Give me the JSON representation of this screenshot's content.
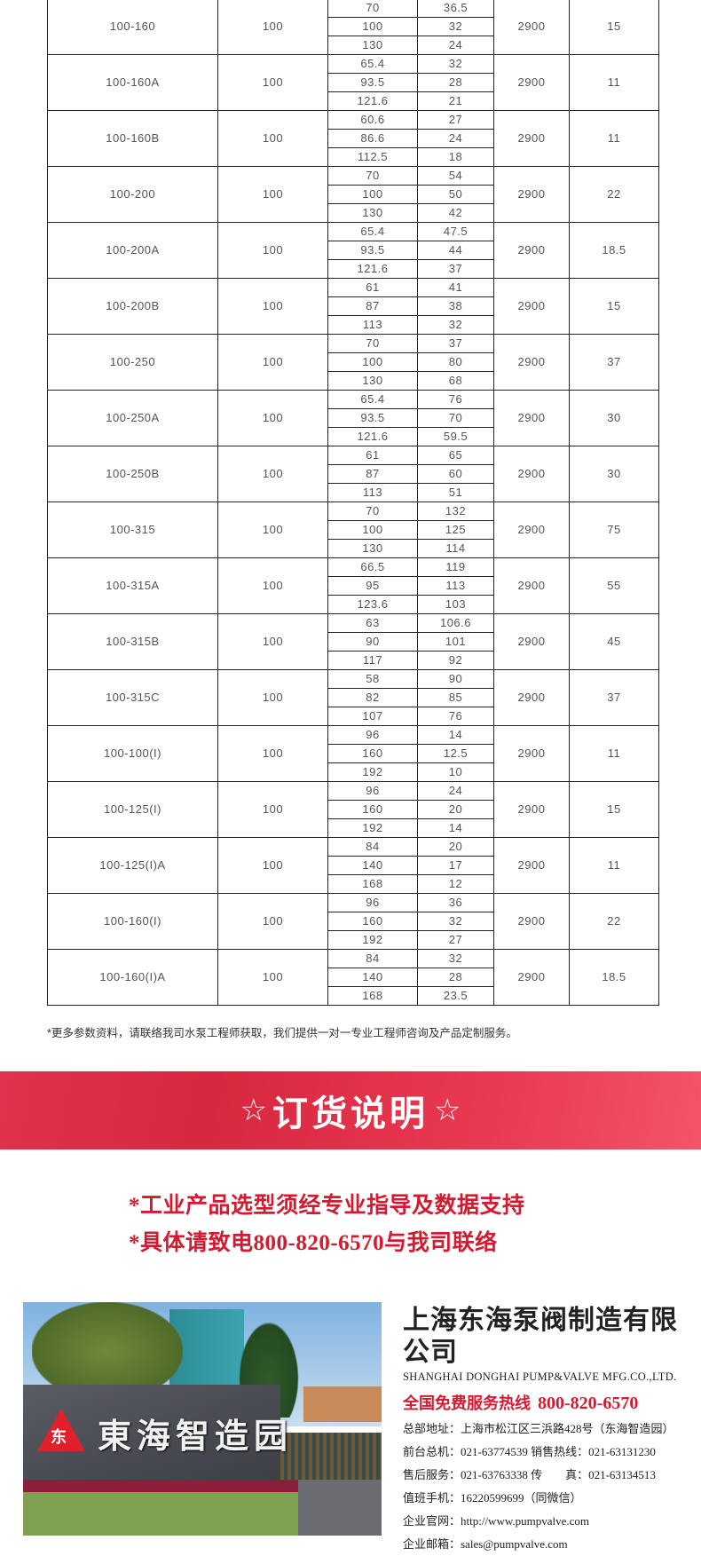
{
  "table": {
    "groups": [
      {
        "model": "100-160",
        "inlet": "100",
        "flow": [
          "70",
          "100",
          "130"
        ],
        "head": [
          "36.5",
          "32",
          "24"
        ],
        "speed": "2900",
        "power": "15"
      },
      {
        "model": "100-160A",
        "inlet": "100",
        "flow": [
          "65.4",
          "93.5",
          "121.6"
        ],
        "head": [
          "32",
          "28",
          "21"
        ],
        "speed": "2900",
        "power": "11"
      },
      {
        "model": "100-160B",
        "inlet": "100",
        "flow": [
          "60.6",
          "86.6",
          "112.5"
        ],
        "head": [
          "27",
          "24",
          "18"
        ],
        "speed": "2900",
        "power": "11"
      },
      {
        "model": "100-200",
        "inlet": "100",
        "flow": [
          "70",
          "100",
          "130"
        ],
        "head": [
          "54",
          "50",
          "42"
        ],
        "speed": "2900",
        "power": "22"
      },
      {
        "model": "100-200A",
        "inlet": "100",
        "flow": [
          "65.4",
          "93.5",
          "121.6"
        ],
        "head": [
          "47.5",
          "44",
          "37"
        ],
        "speed": "2900",
        "power": "18.5"
      },
      {
        "model": "100-200B",
        "inlet": "100",
        "flow": [
          "61",
          "87",
          "113"
        ],
        "head": [
          "41",
          "38",
          "32"
        ],
        "speed": "2900",
        "power": "15"
      },
      {
        "model": "100-250",
        "inlet": "100",
        "flow": [
          "70",
          "100",
          "130"
        ],
        "head": [
          "37",
          "80",
          "68"
        ],
        "speed": "2900",
        "power": "37"
      },
      {
        "model": "100-250A",
        "inlet": "100",
        "flow": [
          "65.4",
          "93.5",
          "121.6"
        ],
        "head": [
          "76",
          "70",
          "59.5"
        ],
        "speed": "2900",
        "power": "30"
      },
      {
        "model": "100-250B",
        "inlet": "100",
        "flow": [
          "61",
          "87",
          "113"
        ],
        "head": [
          "65",
          "60",
          "51"
        ],
        "speed": "2900",
        "power": "30"
      },
      {
        "model": "100-315",
        "inlet": "100",
        "flow": [
          "70",
          "100",
          "130"
        ],
        "head": [
          "132",
          "125",
          "114"
        ],
        "speed": "2900",
        "power": "75"
      },
      {
        "model": "100-315A",
        "inlet": "100",
        "flow": [
          "66.5",
          "95",
          "123.6"
        ],
        "head": [
          "119",
          "113",
          "103"
        ],
        "speed": "2900",
        "power": "55"
      },
      {
        "model": "100-315B",
        "inlet": "100",
        "flow": [
          "63",
          "90",
          "117"
        ],
        "head": [
          "106.6",
          "101",
          "92"
        ],
        "speed": "2900",
        "power": "45"
      },
      {
        "model": "100-315C",
        "inlet": "100",
        "flow": [
          "58",
          "82",
          "107"
        ],
        "head": [
          "90",
          "85",
          "76"
        ],
        "speed": "2900",
        "power": "37"
      },
      {
        "model": "100-100(I)",
        "inlet": "100",
        "flow": [
          "96",
          "160",
          "192"
        ],
        "head": [
          "14",
          "12.5",
          "10"
        ],
        "speed": "2900",
        "power": "11"
      },
      {
        "model": "100-125(I)",
        "inlet": "100",
        "flow": [
          "96",
          "160",
          "192"
        ],
        "head": [
          "24",
          "20",
          "14"
        ],
        "speed": "2900",
        "power": "15"
      },
      {
        "model": "100-125(I)A",
        "inlet": "100",
        "flow": [
          "84",
          "140",
          "168"
        ],
        "head": [
          "20",
          "17",
          "12"
        ],
        "speed": "2900",
        "power": "11"
      },
      {
        "model": "100-160(I)",
        "inlet": "100",
        "flow": [
          "96",
          "160",
          "192"
        ],
        "head": [
          "36",
          "32",
          "27"
        ],
        "speed": "2900",
        "power": "22"
      },
      {
        "model": "100-160(I)A",
        "inlet": "100",
        "flow": [
          "84",
          "140",
          "168"
        ],
        "head": [
          "32",
          "28",
          "23.5"
        ],
        "speed": "2900",
        "power": "18.5"
      }
    ]
  },
  "footnote": "*更多参数资料，请联络我司水泵工程师获取，我们提供一对一专业工程师咨询及产品定制服务。",
  "banner": {
    "star_left": "☆",
    "title": "订货说明",
    "star_right": "☆",
    "color": "#e0324e"
  },
  "notes": [
    "*工业产品选型须经专业指导及数据支持",
    "*具体请致电800-820-6570与我司联络"
  ],
  "photo": {
    "logo_char": "东",
    "wall_text": "東海智造园"
  },
  "company": {
    "cn_name": "上海东海泵阀制造有限公司",
    "en_name": "SHANGHAI DONGHAI PUMP&VALVE MFG.CO.,LTD.",
    "hotline_label": "全国免费服务热线",
    "hotline": "800-820-6570",
    "info": [
      "总部地址：上海市松江区三浜路428号（东海智造园）",
      "前台总机：021-63774539   销售热线：021-63131230",
      "售后服务：021-63763338   传　　真：021-63134513",
      "值班手机：16220599699（同微信）",
      "企业官网：http://www.pumpvalve.com",
      "企业邮箱：sales@pumpvalve.com"
    ],
    "accent": "#d41a30"
  }
}
